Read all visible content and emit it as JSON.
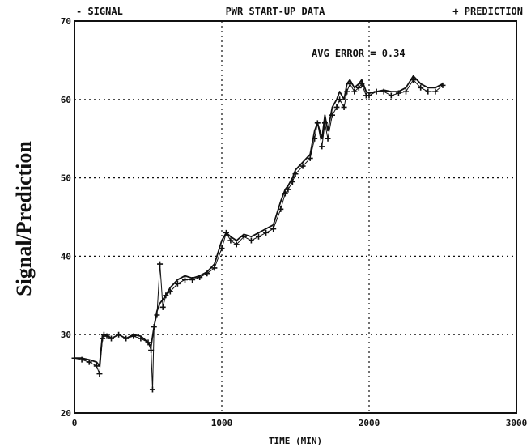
{
  "chart_data": {
    "type": "line",
    "title": "PWR START-UP DATA",
    "legend": [
      "- SIGNAL",
      "+ PREDICTION"
    ],
    "legend_placement": "top",
    "annotation": "AVG ERROR =  0.34",
    "xlabel": "TIME (MIN)",
    "ylabel": "Signal/Prediction",
    "xlim": [
      0,
      3000
    ],
    "ylim": [
      20,
      70
    ],
    "x_ticks": [
      "0",
      "1000",
      "2000",
      "3000"
    ],
    "y_ticks": [
      "20",
      "30",
      "40",
      "50",
      "60",
      "70"
    ],
    "grid": "dotted",
    "series": [
      {
        "name": "SIGNAL",
        "marker": "line",
        "x": [
          0,
          50,
          100,
          150,
          170,
          190,
          200,
          220,
          250,
          300,
          350,
          400,
          450,
          500,
          520,
          540,
          560,
          580,
          600,
          620,
          650,
          700,
          750,
          800,
          850,
          900,
          950,
          1000,
          1030,
          1060,
          1100,
          1150,
          1200,
          1250,
          1300,
          1350,
          1400,
          1430,
          1450,
          1480,
          1500,
          1550,
          1600,
          1630,
          1650,
          1680,
          1700,
          1720,
          1750,
          1780,
          1800,
          1830,
          1850,
          1870,
          1900,
          1930,
          1950,
          1980,
          2000,
          2050,
          2100,
          2150,
          2200,
          2250,
          2300,
          2350,
          2400,
          2450,
          2500
        ],
        "y": [
          27,
          27,
          26.8,
          26.5,
          26,
          30,
          30,
          30,
          29.5,
          30,
          29.5,
          30,
          29.8,
          29,
          28.5,
          31,
          33,
          34,
          34.5,
          35,
          36,
          37,
          37.5,
          37.2,
          37.5,
          38,
          39,
          42,
          43,
          42.5,
          42,
          42.8,
          42.5,
          43,
          43.5,
          44,
          47,
          48.5,
          49,
          50,
          51,
          52,
          53,
          56,
          57,
          55,
          58,
          56,
          59,
          60,
          61,
          60,
          62,
          62.5,
          61.5,
          62,
          62.5,
          61,
          60.8,
          61,
          61.2,
          61,
          61,
          61.5,
          63,
          62,
          61.5,
          61.5,
          62
        ]
      },
      {
        "name": "PREDICTION",
        "marker": "+",
        "x": [
          0,
          50,
          100,
          150,
          170,
          190,
          200,
          220,
          250,
          300,
          350,
          400,
          450,
          500,
          520,
          530,
          540,
          560,
          580,
          600,
          620,
          650,
          700,
          750,
          800,
          850,
          900,
          950,
          1000,
          1030,
          1060,
          1100,
          1150,
          1200,
          1250,
          1300,
          1350,
          1400,
          1430,
          1450,
          1480,
          1500,
          1550,
          1600,
          1630,
          1650,
          1680,
          1700,
          1720,
          1750,
          1780,
          1800,
          1830,
          1850,
          1870,
          1900,
          1930,
          1950,
          1980,
          2000,
          2050,
          2100,
          2150,
          2200,
          2250,
          2300,
          2350,
          2400,
          2450,
          2500
        ],
        "y": [
          27,
          26.8,
          26.5,
          26,
          25,
          29.5,
          30,
          29.8,
          29.5,
          30,
          29.5,
          29.8,
          29.5,
          29,
          28,
          23,
          31,
          32.5,
          39,
          33.5,
          35,
          35.5,
          36.5,
          37,
          37,
          37.3,
          37.8,
          38.5,
          41,
          43,
          42,
          41.5,
          42.5,
          42,
          42.5,
          43,
          43.5,
          46,
          48,
          48.5,
          49.5,
          50.5,
          51.5,
          52.5,
          55,
          57,
          54,
          57,
          55,
          58,
          59,
          60,
          59,
          61,
          62,
          61,
          61.5,
          62,
          60.5,
          60.5,
          61,
          61,
          60.5,
          60.8,
          61,
          62.5,
          61.5,
          61,
          61,
          61.8
        ]
      }
    ]
  }
}
